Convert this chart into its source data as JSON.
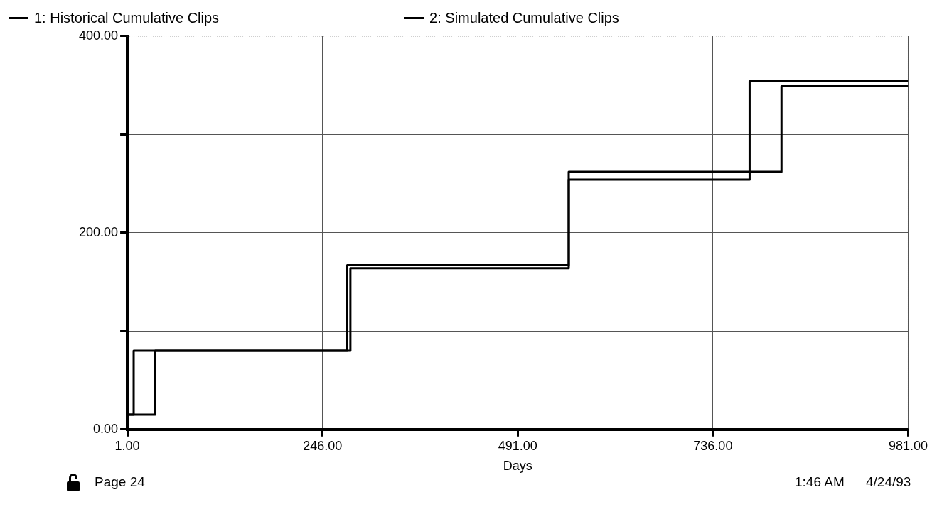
{
  "chart_data": {
    "type": "step",
    "xlabel": "Days",
    "series": [
      {
        "name": "1: Historical Cumulative Clips",
        "color": "#000000",
        "x": [
          1,
          9,
          281,
          555,
          822,
          981
        ],
        "values": [
          15,
          80,
          164,
          262,
          349,
          349
        ]
      },
      {
        "name": "2: Simulated Cumulative Clips",
        "color": "#000000",
        "x": [
          1,
          36,
          277,
          555,
          782,
          981
        ],
        "values": [
          15,
          80,
          167,
          254,
          354,
          354
        ]
      }
    ],
    "xlim": [
      1,
      981
    ],
    "xticks": [
      {
        "value": 1,
        "label": "1.00"
      },
      {
        "value": 246,
        "label": "246.00"
      },
      {
        "value": 491,
        "label": "491.00"
      },
      {
        "value": 736,
        "label": "736.00"
      },
      {
        "value": 981,
        "label": "981.00"
      }
    ],
    "ylim": [
      0,
      400
    ],
    "yticks": [
      {
        "value": 0,
        "label": "0.00"
      },
      {
        "value": 100,
        "label": null
      },
      {
        "value": 200,
        "label": "200.00"
      },
      {
        "value": 300,
        "label": null
      },
      {
        "value": 400,
        "label": "400.00"
      }
    ],
    "grid": true,
    "legend": "top",
    "line_style": "solid",
    "marker": "none",
    "annotations": [
      "Page 24",
      "1:46  AM",
      "4/24/93"
    ]
  }
}
